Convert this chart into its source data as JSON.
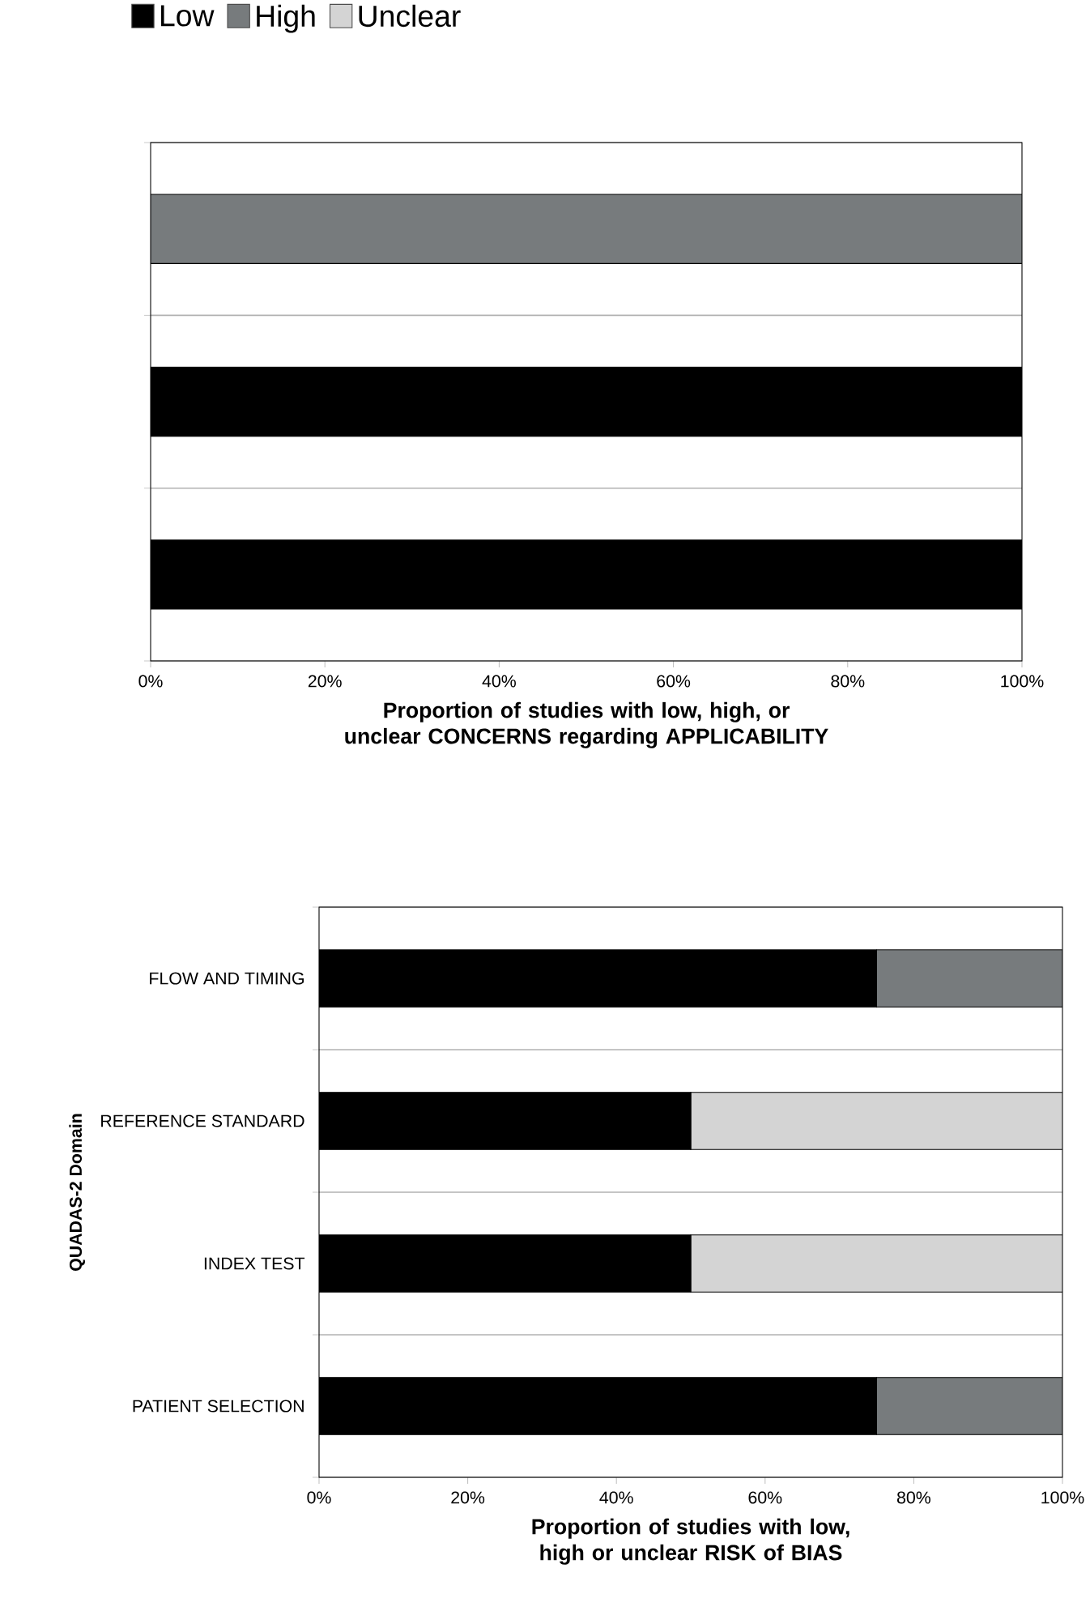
{
  "chart_data": [
    {
      "type": "bar",
      "orientation": "horizontal",
      "stacked": true,
      "legend": "top",
      "grid": "y",
      "xlabel": "Proportion of studies with low, high, or unclear CONCERNS regarding APPLICABILITY",
      "categories": [
        null,
        null,
        null
      ],
      "series": [
        {
          "name": "Low",
          "color": "#000000",
          "values": [
            0,
            100,
            100
          ]
        },
        {
          "name": "High",
          "color": "#777b7d",
          "values": [
            100,
            0,
            0
          ]
        },
        {
          "name": "Unclear",
          "color": "#d4d4d4",
          "values": [
            0,
            0,
            0
          ]
        }
      ],
      "xlim": [
        0,
        100
      ],
      "xticks": [
        {
          "value": 0,
          "label": "0%"
        },
        {
          "value": 20,
          "label": "20%"
        },
        {
          "value": 40,
          "label": "40%"
        },
        {
          "value": 60,
          "label": "60%"
        },
        {
          "value": 80,
          "label": "80%"
        },
        {
          "value": 100,
          "label": "100%"
        }
      ]
    },
    {
      "type": "bar",
      "orientation": "horizontal",
      "stacked": true,
      "grid": "y",
      "xlabel": "Proportion of studies with low, high or unclear RISK of BIAS",
      "ylabel": "QUADAS-2 Domain",
      "categories": [
        "FLOW AND TIMING",
        "REFERENCE STANDARD",
        "INDEX TEST",
        "PATIENT SELECTION"
      ],
      "series": [
        {
          "color": "#000000",
          "values": [
            75,
            50,
            50,
            75
          ]
        },
        {
          "color": "#777b7d",
          "values": [
            25,
            0,
            0,
            25
          ]
        },
        {
          "color": "#d4d4d4",
          "values": [
            0,
            50,
            50,
            0
          ]
        }
      ],
      "xlim": [
        0,
        100
      ],
      "xticks": [
        {
          "value": 0,
          "label": "0%"
        },
        {
          "value": 20,
          "label": "20%"
        },
        {
          "value": 40,
          "label": "40%"
        },
        {
          "value": 60,
          "label": "60%"
        },
        {
          "value": 80,
          "label": "80%"
        },
        {
          "value": 100,
          "label": "100%"
        }
      ]
    }
  ]
}
